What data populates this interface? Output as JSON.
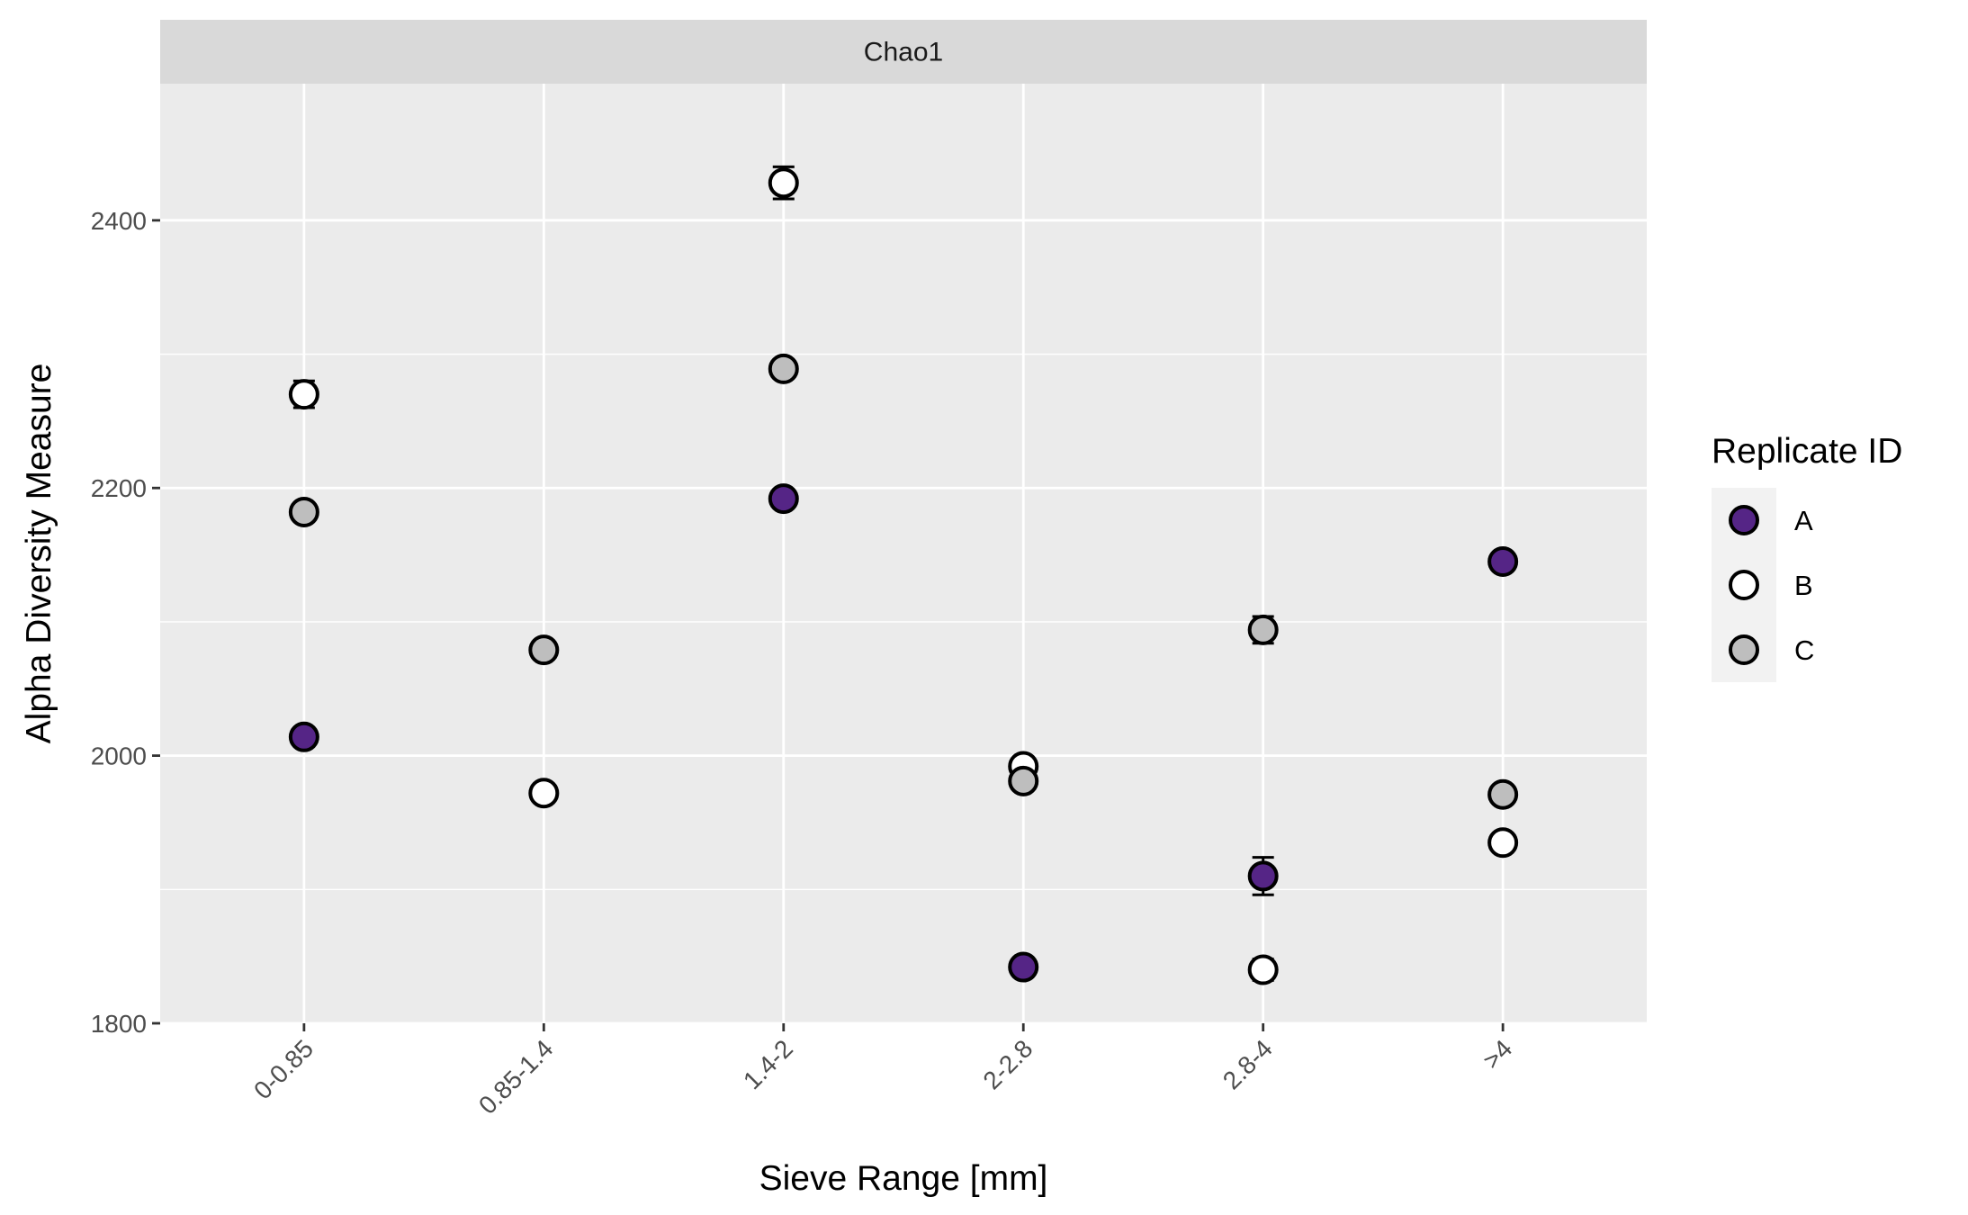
{
  "colors": {
    "A": "#552586",
    "B": "#ffffff",
    "C": "#bebebe",
    "panel_bg": "#ebebeb",
    "strip_bg": "#d9d9d9",
    "grid": "#ffffff"
  },
  "chart_data": {
    "type": "scatter",
    "facet": "Chao1",
    "xlabel": "Sieve Range [mm]",
    "ylabel": "Alpha Diversity Measure",
    "categories": [
      "0-0.85",
      "0.85-1.4",
      "1.4-2",
      "2-2.8",
      "2.8-4",
      ">4"
    ],
    "ylim": [
      1800,
      2500
    ],
    "yticks": [
      1800,
      2000,
      2200,
      2400
    ],
    "legend": {
      "title": "Replicate ID",
      "position": "right",
      "entries": [
        "A",
        "B",
        "C"
      ]
    },
    "series": [
      {
        "name": "A",
        "values": [
          2014,
          null,
          2192,
          1842,
          1910,
          2145
        ],
        "errors": [
          4,
          null,
          4,
          4,
          14,
          4
        ]
      },
      {
        "name": "B",
        "values": [
          2270,
          1972,
          2428,
          1992,
          1840,
          1935
        ],
        "errors": [
          10,
          4,
          12,
          4,
          8,
          6
        ]
      },
      {
        "name": "C",
        "values": [
          2182,
          2079,
          2289,
          1981,
          2094,
          1971
        ],
        "errors": [
          4,
          4,
          4,
          4,
          10,
          4
        ]
      }
    ]
  }
}
